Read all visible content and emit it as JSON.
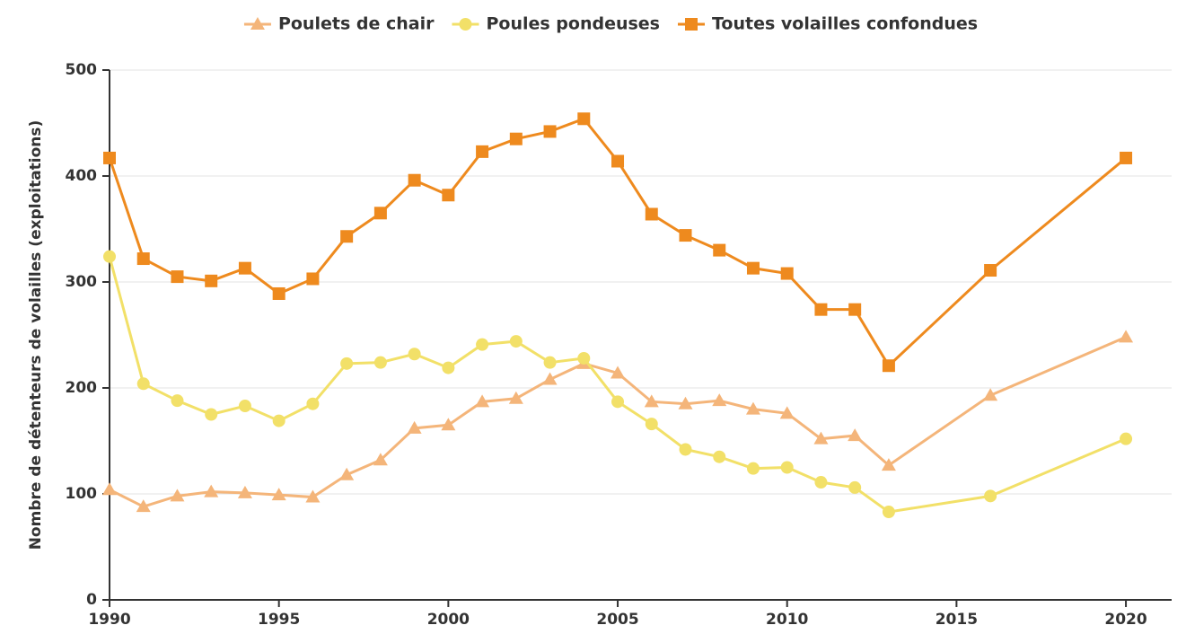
{
  "chart_data": {
    "type": "line",
    "ylabel": "Nombre de détenteurs de volailles (exploitations)",
    "x": [
      1990,
      1991,
      1992,
      1993,
      1994,
      1995,
      1996,
      1997,
      1998,
      1999,
      2000,
      2001,
      2002,
      2003,
      2004,
      2005,
      2006,
      2007,
      2008,
      2009,
      2010,
      2011,
      2012,
      2013,
      2016,
      2020
    ],
    "series": [
      {
        "name": "Poulets de chair",
        "color": "#f4b57a",
        "marker": "triangle",
        "values": [
          104,
          88,
          98,
          102,
          101,
          99,
          97,
          118,
          132,
          162,
          165,
          187,
          190,
          208,
          223,
          214,
          187,
          185,
          188,
          180,
          176,
          152,
          155,
          127,
          193,
          248
        ]
      },
      {
        "name": "Poules pondeuses",
        "color": "#f2e068",
        "marker": "circle",
        "values": [
          324,
          204,
          188,
          175,
          183,
          169,
          185,
          223,
          224,
          232,
          219,
          241,
          244,
          224,
          228,
          187,
          166,
          142,
          135,
          124,
          125,
          111,
          106,
          83,
          98,
          152
        ]
      },
      {
        "name": "Toutes volailles confondues",
        "color": "#ee8a1e",
        "marker": "square",
        "values": [
          417,
          322,
          305,
          301,
          313,
          289,
          303,
          343,
          365,
          396,
          382,
          423,
          435,
          442,
          454,
          414,
          364,
          344,
          330,
          313,
          308,
          274,
          274,
          221,
          311,
          417
        ]
      }
    ],
    "xlim": [
      1990,
      2021.35
    ],
    "xticks": [
      1990,
      1995,
      2000,
      2005,
      2010,
      2015,
      2020
    ],
    "ylim": [
      0,
      500
    ],
    "yticks": [
      0,
      100,
      200,
      300,
      400,
      500
    ],
    "grid": true,
    "legend": "top"
  }
}
